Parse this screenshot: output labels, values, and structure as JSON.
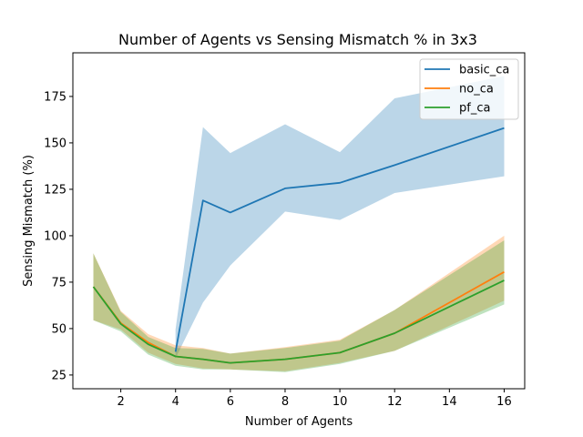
{
  "chart_data": {
    "type": "line",
    "title": "Number of Agents vs Sensing Mismatch % in 3x3",
    "xlabel": "Number of Agents",
    "ylabel": "Sensing Mismatch (%)",
    "xlim": [
      0.25,
      16.75
    ],
    "ylim": [
      17.6,
      198.5
    ],
    "xticks": [
      2,
      4,
      6,
      8,
      10,
      12,
      14,
      16
    ],
    "yticks": [
      25,
      50,
      75,
      100,
      125,
      150,
      175
    ],
    "legend_position": "top-right",
    "x": [
      1,
      2,
      3,
      4,
      5,
      6,
      8,
      10,
      12,
      16
    ],
    "series": [
      {
        "name": "basic_ca",
        "color": "#1f77b4",
        "x": [
          4,
          5,
          6,
          8,
          10,
          12,
          16
        ],
        "values": [
          37.5,
          119,
          112.5,
          125.5,
          128.5,
          138,
          158
        ],
        "lower": [
          34,
          64,
          84,
          113,
          108.5,
          123,
          132
        ],
        "upper": [
          49.5,
          158.5,
          144.5,
          160,
          145,
          174,
          186
        ]
      },
      {
        "name": "no_ca",
        "color": "#ff7f0e",
        "x": [
          1,
          2,
          3,
          4,
          5,
          6,
          8,
          10,
          12,
          16
        ],
        "values": [
          72.5,
          53,
          42.5,
          35,
          33.5,
          31.5,
          33.5,
          37,
          47.5,
          80.5
        ],
        "lower": [
          54.5,
          49.5,
          37,
          31,
          28.5,
          28,
          27,
          31.5,
          38,
          65
        ],
        "upper": [
          90.5,
          59.5,
          47,
          41,
          39.5,
          36.5,
          40,
          44,
          60,
          100
        ]
      },
      {
        "name": "pf_ca",
        "color": "#2ca02c",
        "x": [
          1,
          2,
          3,
          4,
          5,
          6,
          8,
          10,
          12,
          16
        ],
        "values": [
          72.5,
          52.5,
          41.5,
          35,
          33.5,
          31.5,
          33.5,
          37,
          47.5,
          76
        ],
        "lower": [
          54.5,
          48.5,
          36,
          30,
          28,
          28,
          26.5,
          31,
          38,
          63
        ],
        "upper": [
          90.5,
          59,
          45.5,
          39.5,
          39,
          36.5,
          39.5,
          43.5,
          60,
          97.5
        ]
      }
    ]
  }
}
